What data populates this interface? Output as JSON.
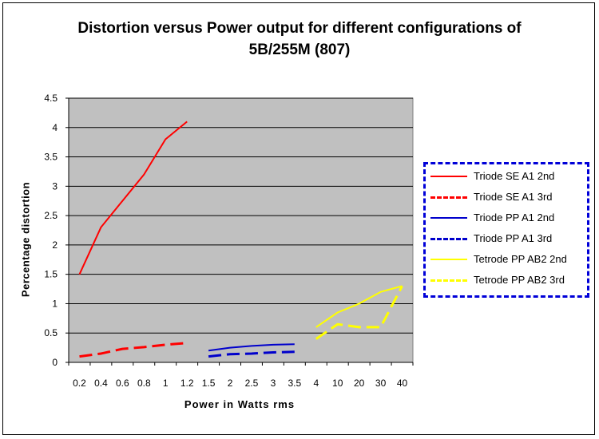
{
  "chart_data": {
    "type": "line",
    "title": "Distortion versus Power output for different configurations of 5B/255M (807)",
    "xlabel": "Power in Watts rms",
    "ylabel": "Percentage distortion",
    "ylim": [
      0,
      4.5
    ],
    "yticks": [
      "0",
      "0.5",
      "1",
      "1.5",
      "2",
      "2.5",
      "3",
      "3.5",
      "4",
      "4.5"
    ],
    "categories": [
      "0.2",
      "0.4",
      "0.6",
      "0.8",
      "1",
      "1.2",
      "1.5",
      "2",
      "2.5",
      "3",
      "3.5",
      "4",
      "10",
      "20",
      "30",
      "40"
    ],
    "grid": true,
    "plot_background": "#c0c0c0",
    "legend_position": "right",
    "series": [
      {
        "name": "Triode SE A1 2nd",
        "color": "#ff0000",
        "dashed": false,
        "values": [
          1.5,
          2.3,
          2.75,
          3.2,
          3.8,
          4.1,
          null,
          null,
          null,
          null,
          null,
          null,
          null,
          null,
          null,
          null
        ]
      },
      {
        "name": "Triode SE A1 3rd",
        "color": "#ff0000",
        "dashed": true,
        "values": [
          0.1,
          0.15,
          0.23,
          0.26,
          0.3,
          0.33,
          null,
          null,
          null,
          null,
          null,
          null,
          null,
          null,
          null,
          null
        ]
      },
      {
        "name": "Triode PP A1 2nd",
        "color": "#0000cc",
        "dashed": false,
        "values": [
          null,
          null,
          null,
          null,
          null,
          null,
          0.2,
          0.25,
          0.28,
          0.3,
          0.31,
          null,
          null,
          null,
          null,
          null
        ]
      },
      {
        "name": "Triode PP A1 3rd",
        "color": "#0000cc",
        "dashed": true,
        "values": [
          null,
          null,
          null,
          null,
          null,
          null,
          0.1,
          0.14,
          0.15,
          0.17,
          0.18,
          null,
          null,
          null,
          null,
          null
        ]
      },
      {
        "name": "Tetrode PP AB2 2nd",
        "color": "#ffff00",
        "dashed": false,
        "values": [
          null,
          null,
          null,
          null,
          null,
          null,
          null,
          null,
          null,
          null,
          null,
          0.6,
          0.85,
          1.0,
          1.2,
          1.3
        ]
      },
      {
        "name": "Tetrode PP AB2 3rd",
        "color": "#ffff00",
        "dashed": true,
        "values": [
          null,
          null,
          null,
          null,
          null,
          null,
          null,
          null,
          null,
          null,
          null,
          0.4,
          0.65,
          0.6,
          0.6,
          1.3
        ]
      }
    ]
  }
}
